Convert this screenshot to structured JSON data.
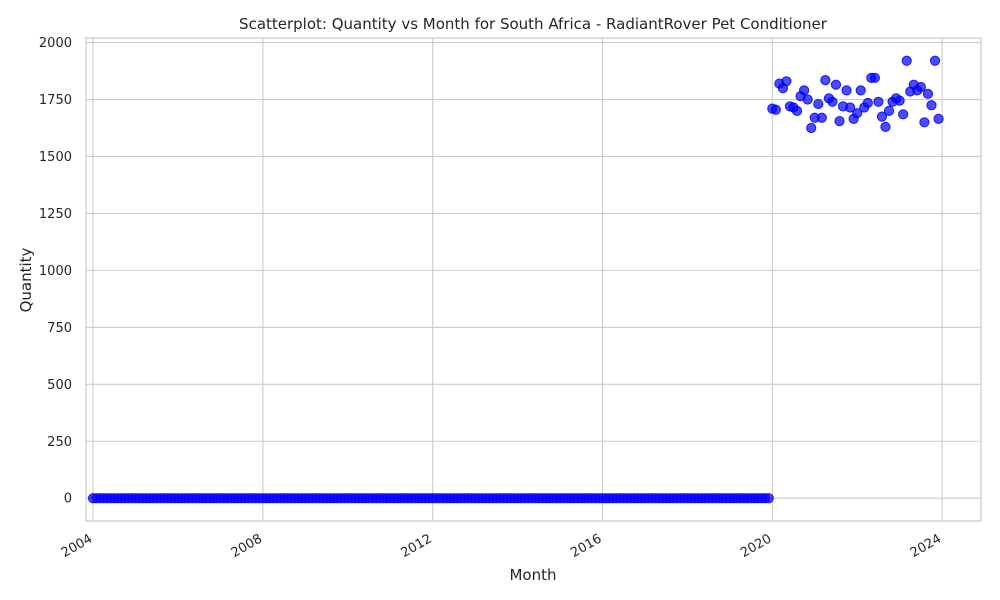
{
  "chart_data": {
    "type": "scatter",
    "title": "Scatterplot: Quantity vs Month for South Africa - RadiantRover Pet Conditioner",
    "xlabel": "Month",
    "ylabel": "Quantity",
    "x_axis": "date",
    "xlim": [
      "2003-11-01",
      "2024-12-01"
    ],
    "ylim": [
      -100,
      2020
    ],
    "xticks": [
      "2004",
      "2008",
      "2012",
      "2016",
      "2020",
      "2024"
    ],
    "yticks": [
      0,
      250,
      500,
      750,
      1000,
      1250,
      1500,
      1750,
      2000
    ],
    "grid": true,
    "legend": "none",
    "point_color": "#0000ff",
    "series": [
      {
        "points": [
          [
            "2004-01-01",
            0
          ],
          [
            "2004-02-01",
            0
          ],
          [
            "2004-03-01",
            0
          ],
          [
            "2004-04-01",
            0
          ],
          [
            "2004-05-01",
            0
          ],
          [
            "2004-06-01",
            0
          ],
          [
            "2004-07-01",
            0
          ],
          [
            "2004-08-01",
            0
          ],
          [
            "2004-09-01",
            0
          ],
          [
            "2004-10-01",
            0
          ],
          [
            "2004-11-01",
            0
          ],
          [
            "2004-12-01",
            0
          ],
          [
            "2005-01-01",
            0
          ],
          [
            "2005-02-01",
            0
          ],
          [
            "2005-03-01",
            0
          ],
          [
            "2005-04-01",
            0
          ],
          [
            "2005-05-01",
            0
          ],
          [
            "2005-06-01",
            0
          ],
          [
            "2005-07-01",
            0
          ],
          [
            "2005-08-01",
            0
          ],
          [
            "2005-09-01",
            0
          ],
          [
            "2005-10-01",
            0
          ],
          [
            "2005-11-01",
            0
          ],
          [
            "2005-12-01",
            0
          ],
          [
            "2006-01-01",
            0
          ],
          [
            "2006-02-01",
            0
          ],
          [
            "2006-03-01",
            0
          ],
          [
            "2006-04-01",
            0
          ],
          [
            "2006-05-01",
            0
          ],
          [
            "2006-06-01",
            0
          ],
          [
            "2006-07-01",
            0
          ],
          [
            "2006-08-01",
            0
          ],
          [
            "2006-09-01",
            0
          ],
          [
            "2006-10-01",
            0
          ],
          [
            "2006-11-01",
            0
          ],
          [
            "2006-12-01",
            0
          ],
          [
            "2007-01-01",
            0
          ],
          [
            "2007-02-01",
            0
          ],
          [
            "2007-03-01",
            0
          ],
          [
            "2007-04-01",
            0
          ],
          [
            "2007-05-01",
            0
          ],
          [
            "2007-06-01",
            0
          ],
          [
            "2007-07-01",
            0
          ],
          [
            "2007-08-01",
            0
          ],
          [
            "2007-09-01",
            0
          ],
          [
            "2007-10-01",
            0
          ],
          [
            "2007-11-01",
            0
          ],
          [
            "2007-12-01",
            0
          ],
          [
            "2008-01-01",
            0
          ],
          [
            "2008-02-01",
            0
          ],
          [
            "2008-03-01",
            0
          ],
          [
            "2008-04-01",
            0
          ],
          [
            "2008-05-01",
            0
          ],
          [
            "2008-06-01",
            0
          ],
          [
            "2008-07-01",
            0
          ],
          [
            "2008-08-01",
            0
          ],
          [
            "2008-09-01",
            0
          ],
          [
            "2008-10-01",
            0
          ],
          [
            "2008-11-01",
            0
          ],
          [
            "2008-12-01",
            0
          ],
          [
            "2009-01-01",
            0
          ],
          [
            "2009-02-01",
            0
          ],
          [
            "2009-03-01",
            0
          ],
          [
            "2009-04-01",
            0
          ],
          [
            "2009-05-01",
            0
          ],
          [
            "2009-06-01",
            0
          ],
          [
            "2009-07-01",
            0
          ],
          [
            "2009-08-01",
            0
          ],
          [
            "2009-09-01",
            0
          ],
          [
            "2009-10-01",
            0
          ],
          [
            "2009-11-01",
            0
          ],
          [
            "2009-12-01",
            0
          ],
          [
            "2010-01-01",
            0
          ],
          [
            "2010-02-01",
            0
          ],
          [
            "2010-03-01",
            0
          ],
          [
            "2010-04-01",
            0
          ],
          [
            "2010-05-01",
            0
          ],
          [
            "2010-06-01",
            0
          ],
          [
            "2010-07-01",
            0
          ],
          [
            "2010-08-01",
            0
          ],
          [
            "2010-09-01",
            0
          ],
          [
            "2010-10-01",
            0
          ],
          [
            "2010-11-01",
            0
          ],
          [
            "2010-12-01",
            0
          ],
          [
            "2011-01-01",
            0
          ],
          [
            "2011-02-01",
            0
          ],
          [
            "2011-03-01",
            0
          ],
          [
            "2011-04-01",
            0
          ],
          [
            "2011-05-01",
            0
          ],
          [
            "2011-06-01",
            0
          ],
          [
            "2011-07-01",
            0
          ],
          [
            "2011-08-01",
            0
          ],
          [
            "2011-09-01",
            0
          ],
          [
            "2011-10-01",
            0
          ],
          [
            "2011-11-01",
            0
          ],
          [
            "2011-12-01",
            0
          ],
          [
            "2012-01-01",
            0
          ],
          [
            "2012-02-01",
            0
          ],
          [
            "2012-03-01",
            0
          ],
          [
            "2012-04-01",
            0
          ],
          [
            "2012-05-01",
            0
          ],
          [
            "2012-06-01",
            0
          ],
          [
            "2012-07-01",
            0
          ],
          [
            "2012-08-01",
            0
          ],
          [
            "2012-09-01",
            0
          ],
          [
            "2012-10-01",
            0
          ],
          [
            "2012-11-01",
            0
          ],
          [
            "2012-12-01",
            0
          ],
          [
            "2013-01-01",
            0
          ],
          [
            "2013-02-01",
            0
          ],
          [
            "2013-03-01",
            0
          ],
          [
            "2013-04-01",
            0
          ],
          [
            "2013-05-01",
            0
          ],
          [
            "2013-06-01",
            0
          ],
          [
            "2013-07-01",
            0
          ],
          [
            "2013-08-01",
            0
          ],
          [
            "2013-09-01",
            0
          ],
          [
            "2013-10-01",
            0
          ],
          [
            "2013-11-01",
            0
          ],
          [
            "2013-12-01",
            0
          ],
          [
            "2014-01-01",
            0
          ],
          [
            "2014-02-01",
            0
          ],
          [
            "2014-03-01",
            0
          ],
          [
            "2014-04-01",
            0
          ],
          [
            "2014-05-01",
            0
          ],
          [
            "2014-06-01",
            0
          ],
          [
            "2014-07-01",
            0
          ],
          [
            "2014-08-01",
            0
          ],
          [
            "2014-09-01",
            0
          ],
          [
            "2014-10-01",
            0
          ],
          [
            "2014-11-01",
            0
          ],
          [
            "2014-12-01",
            0
          ],
          [
            "2015-01-01",
            0
          ],
          [
            "2015-02-01",
            0
          ],
          [
            "2015-03-01",
            0
          ],
          [
            "2015-04-01",
            0
          ],
          [
            "2015-05-01",
            0
          ],
          [
            "2015-06-01",
            0
          ],
          [
            "2015-07-01",
            0
          ],
          [
            "2015-08-01",
            0
          ],
          [
            "2015-09-01",
            0
          ],
          [
            "2015-10-01",
            0
          ],
          [
            "2015-11-01",
            0
          ],
          [
            "2015-12-01",
            0
          ],
          [
            "2016-01-01",
            0
          ],
          [
            "2016-02-01",
            0
          ],
          [
            "2016-03-01",
            0
          ],
          [
            "2016-04-01",
            0
          ],
          [
            "2016-05-01",
            0
          ],
          [
            "2016-06-01",
            0
          ],
          [
            "2016-07-01",
            0
          ],
          [
            "2016-08-01",
            0
          ],
          [
            "2016-09-01",
            0
          ],
          [
            "2016-10-01",
            0
          ],
          [
            "2016-11-01",
            0
          ],
          [
            "2016-12-01",
            0
          ],
          [
            "2017-01-01",
            0
          ],
          [
            "2017-02-01",
            0
          ],
          [
            "2017-03-01",
            0
          ],
          [
            "2017-04-01",
            0
          ],
          [
            "2017-05-01",
            0
          ],
          [
            "2017-06-01",
            0
          ],
          [
            "2017-07-01",
            0
          ],
          [
            "2017-08-01",
            0
          ],
          [
            "2017-09-01",
            0
          ],
          [
            "2017-10-01",
            0
          ],
          [
            "2017-11-01",
            0
          ],
          [
            "2017-12-01",
            0
          ],
          [
            "2018-01-01",
            0
          ],
          [
            "2018-02-01",
            0
          ],
          [
            "2018-03-01",
            0
          ],
          [
            "2018-04-01",
            0
          ],
          [
            "2018-05-01",
            0
          ],
          [
            "2018-06-01",
            0
          ],
          [
            "2018-07-01",
            0
          ],
          [
            "2018-08-01",
            0
          ],
          [
            "2018-09-01",
            0
          ],
          [
            "2018-10-01",
            0
          ],
          [
            "2018-11-01",
            0
          ],
          [
            "2018-12-01",
            0
          ],
          [
            "2019-01-01",
            0
          ],
          [
            "2019-02-01",
            0
          ],
          [
            "2019-03-01",
            0
          ],
          [
            "2019-04-01",
            0
          ],
          [
            "2019-05-01",
            0
          ],
          [
            "2019-06-01",
            0
          ],
          [
            "2019-07-01",
            0
          ],
          [
            "2019-08-01",
            0
          ],
          [
            "2019-09-01",
            0
          ],
          [
            "2019-10-01",
            0
          ],
          [
            "2019-11-01",
            0
          ],
          [
            "2019-12-01",
            0
          ],
          [
            "2020-01-01",
            1710
          ],
          [
            "2020-02-01",
            1705
          ],
          [
            "2020-03-01",
            1820
          ],
          [
            "2020-04-01",
            1800
          ],
          [
            "2020-05-01",
            1830
          ],
          [
            "2020-06-01",
            1720
          ],
          [
            "2020-07-01",
            1715
          ],
          [
            "2020-08-01",
            1700
          ],
          [
            "2020-09-01",
            1765
          ],
          [
            "2020-10-01",
            1790
          ],
          [
            "2020-11-01",
            1750
          ],
          [
            "2020-12-01",
            1625
          ],
          [
            "2021-01-01",
            1670
          ],
          [
            "2021-02-01",
            1730
          ],
          [
            "2021-03-01",
            1670
          ],
          [
            "2021-04-01",
            1835
          ],
          [
            "2021-05-01",
            1755
          ],
          [
            "2021-06-01",
            1740
          ],
          [
            "2021-07-01",
            1815
          ],
          [
            "2021-08-01",
            1655
          ],
          [
            "2021-09-01",
            1720
          ],
          [
            "2021-10-01",
            1790
          ],
          [
            "2021-11-01",
            1715
          ],
          [
            "2021-12-01",
            1665
          ],
          [
            "2022-01-01",
            1690
          ],
          [
            "2022-02-01",
            1790
          ],
          [
            "2022-03-01",
            1715
          ],
          [
            "2022-04-01",
            1735
          ],
          [
            "2022-05-01",
            1845
          ],
          [
            "2022-06-01",
            1845
          ],
          [
            "2022-07-01",
            1740
          ],
          [
            "2022-08-01",
            1675
          ],
          [
            "2022-09-01",
            1630
          ],
          [
            "2022-10-01",
            1700
          ],
          [
            "2022-11-01",
            1740
          ],
          [
            "2022-12-01",
            1755
          ],
          [
            "2023-01-01",
            1745
          ],
          [
            "2023-02-01",
            1685
          ],
          [
            "2023-03-01",
            1920
          ],
          [
            "2023-04-01",
            1785
          ],
          [
            "2023-05-01",
            1815
          ],
          [
            "2023-06-01",
            1790
          ],
          [
            "2023-07-01",
            1805
          ],
          [
            "2023-08-01",
            1650
          ],
          [
            "2023-09-01",
            1775
          ],
          [
            "2023-10-01",
            1725
          ],
          [
            "2023-11-01",
            1920
          ],
          [
            "2023-12-01",
            1665
          ]
        ]
      }
    ]
  }
}
